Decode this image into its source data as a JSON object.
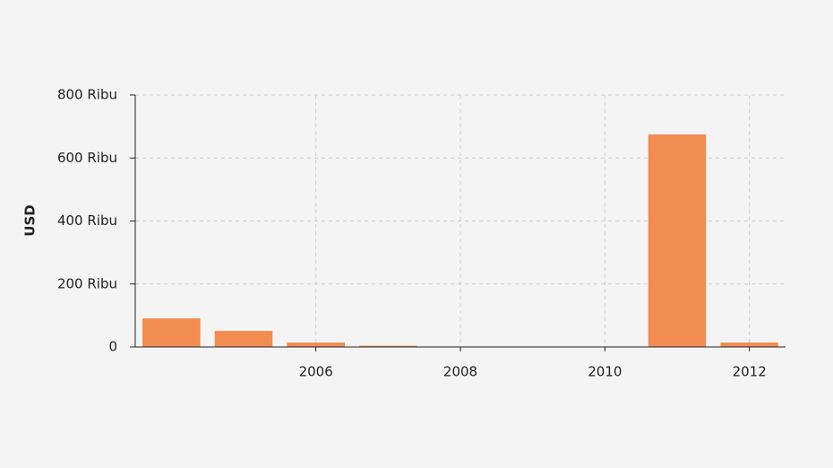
{
  "chart_data": {
    "type": "bar",
    "y_label": "USD",
    "x": [
      2004,
      2005,
      2006,
      2007,
      2011,
      2012
    ],
    "values": [
      91000,
      51000,
      14000,
      4000,
      675000,
      14000
    ],
    "color": "#f28c50",
    "xlim": [
      2003.5,
      2012.5
    ],
    "xticks": [
      2006,
      2008,
      2010,
      2012
    ],
    "ylim": [
      0,
      800000
    ],
    "yticks": [
      {
        "value": 0,
        "label": "0"
      },
      {
        "value": 200000,
        "label": "200 Ribu"
      },
      {
        "value": 400000,
        "label": "400 Ribu"
      },
      {
        "value": 600000,
        "label": "600 Ribu"
      },
      {
        "value": 800000,
        "label": "800 Ribu"
      }
    ],
    "grid": true
  }
}
